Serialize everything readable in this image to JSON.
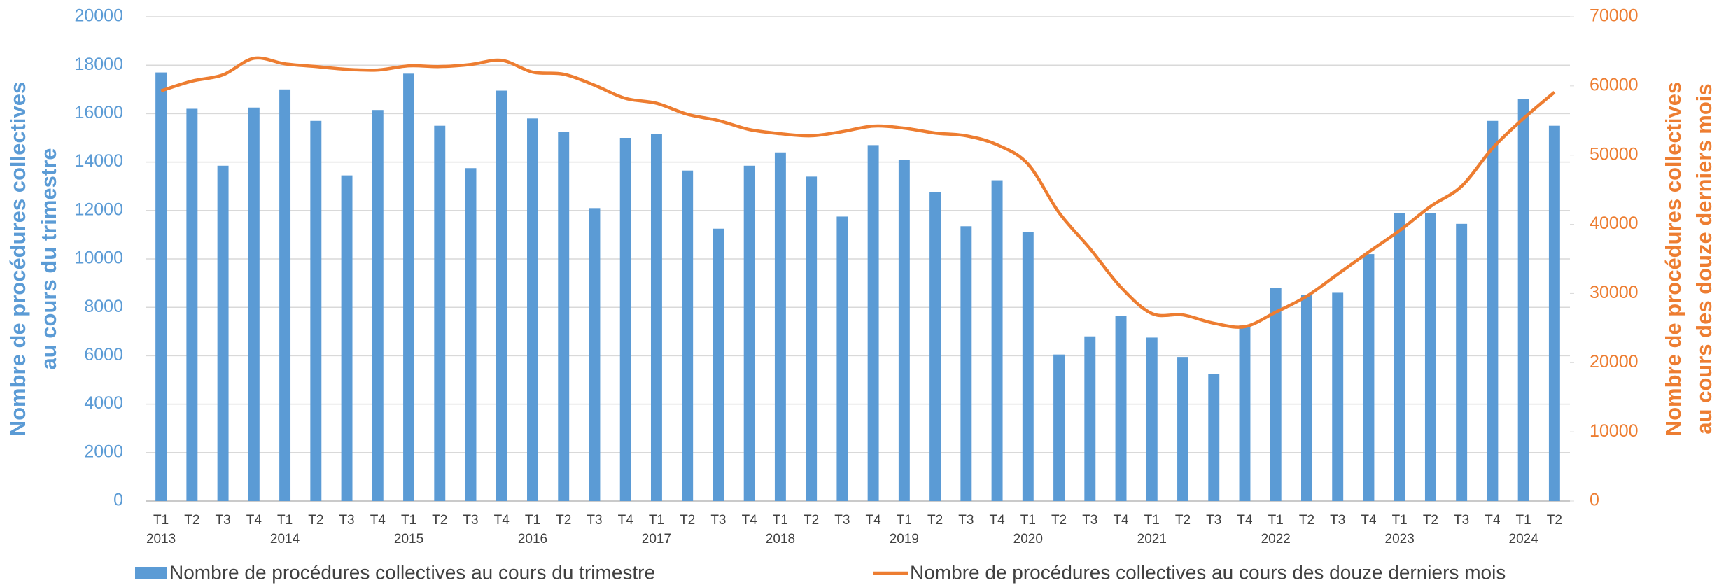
{
  "chart_data": {
    "type": "bar_line",
    "categories": [
      "T1",
      "T2",
      "T3",
      "T4",
      "T1",
      "T2",
      "T3",
      "T4",
      "T1",
      "T2",
      "T3",
      "T4",
      "T1",
      "T2",
      "T3",
      "T4",
      "T1",
      "T2",
      "T3",
      "T4",
      "T1",
      "T2",
      "T3",
      "T4",
      "T1",
      "T2",
      "T3",
      "T4",
      "T1",
      "T2",
      "T3",
      "T4",
      "T1",
      "T2",
      "T3",
      "T4",
      "T1",
      "T2",
      "T3",
      "T4",
      "T1",
      "T2",
      "T3",
      "T4",
      "T1",
      "T2"
    ],
    "years": [
      "2013",
      "2014",
      "2015",
      "2016",
      "2017",
      "2018",
      "2019",
      "2020",
      "2021",
      "2022",
      "2023",
      "2024"
    ],
    "series": [
      {
        "name": "Nombre de procédures collectives au cours du trimestre",
        "type": "bar",
        "color": "#5b9bd5",
        "axis": "y",
        "values": [
          17700,
          16200,
          13850,
          16250,
          17000,
          15700,
          13450,
          16150,
          17650,
          15500,
          13750,
          16950,
          15800,
          15250,
          12100,
          15000,
          15150,
          13650,
          11250,
          13850,
          14400,
          13400,
          11750,
          14700,
          14100,
          12750,
          11350,
          13250,
          11100,
          6050,
          6800,
          7650,
          6750,
          5950,
          5250,
          7250,
          8800,
          8500,
          8600,
          10200,
          11900,
          11900,
          11450,
          15700,
          16600,
          15500
        ]
      },
      {
        "name": "Nombre de procédures collectives au cours des douze derniers mois",
        "type": "line",
        "color": "#ed7d31",
        "axis": "y2",
        "values": [
          59300,
          60700,
          61600,
          64000,
          63200,
          62800,
          62400,
          62300,
          62900,
          62800,
          63100,
          63700,
          62000,
          61700,
          60100,
          58200,
          57500,
          55900,
          55000,
          53700,
          53100,
          52800,
          53400,
          54200,
          53900,
          53200,
          52800,
          51500,
          48700,
          41700,
          36500,
          30900,
          27100,
          26900,
          25700,
          25200,
          27300,
          29600,
          32800,
          36000,
          39100,
          42600,
          45500,
          51000,
          55300,
          59100
        ]
      }
    ],
    "ylabel": [
      "Nombre de procédures collectives",
      "au cours du trimestre"
    ],
    "y2label": [
      "Nombre de procédures collectives",
      "au cours des douze derniers mois"
    ],
    "ylim": [
      0,
      20000
    ],
    "yticks": [
      0,
      2000,
      4000,
      6000,
      8000,
      10000,
      12000,
      14000,
      16000,
      18000,
      20000
    ],
    "y2lim": [
      0,
      70000
    ],
    "y2ticks": [
      0,
      10000,
      20000,
      30000,
      40000,
      50000,
      60000,
      70000
    ],
    "grid": true,
    "legend": "bottom"
  }
}
